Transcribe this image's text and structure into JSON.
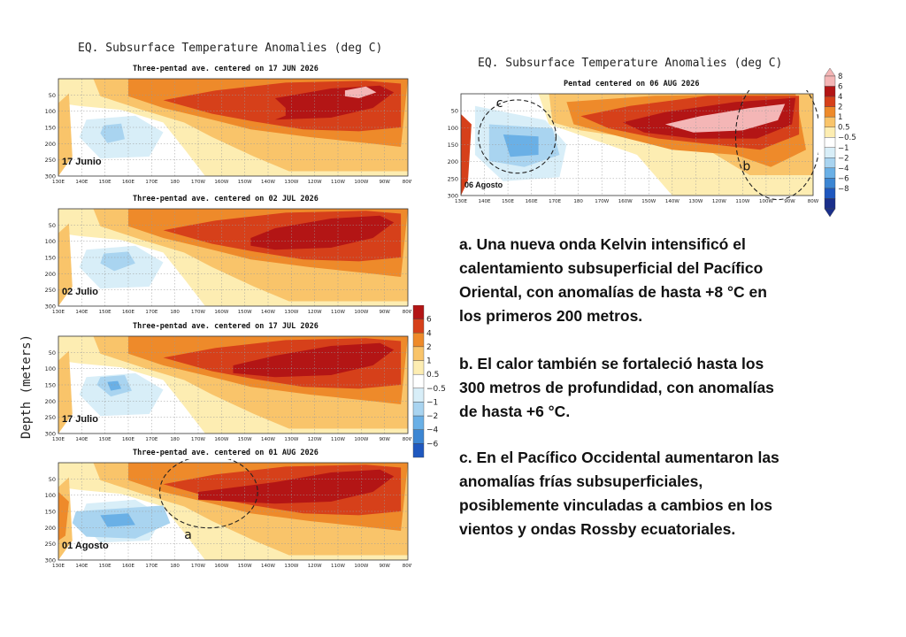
{
  "main_figure": {
    "title": "EQ. Subsurface Temperature Anomalies (deg C)",
    "y_axis_label": "Depth (meters)",
    "panels": [
      {
        "subtitle": "Three-pentad ave. centered on 17 JUN 2026",
        "date_label": "17 Junio"
      },
      {
        "subtitle": "Three-pentad ave. centered on 02 JUL 2026",
        "date_label": "02 Julio"
      },
      {
        "subtitle": "Three-pentad ave. centered on 17 JUL 2026",
        "date_label": "17 Julio"
      },
      {
        "subtitle": "Three-pentad ave. centered on 01 AUG 2026",
        "date_label": "01 Agosto",
        "circle_label": "a"
      }
    ],
    "colorbar_labels": [
      "6",
      "4",
      "2",
      "1",
      "0.5",
      "−0.5",
      "−1",
      "−2",
      "−4",
      "−6"
    ]
  },
  "right_figure": {
    "title": "EQ. Subsurface Temperature Anomalies (deg C)",
    "subtitle": "Pentad centered on 06 AUG 2026",
    "date_label": "06 Agosto",
    "circle_labels": {
      "c": "c",
      "b": "b"
    },
    "colorbar_labels": [
      "8",
      "6",
      "4",
      "2",
      "1",
      "0.5",
      "−0.5",
      "−1",
      "−2",
      "−4",
      "−6",
      "−8"
    ]
  },
  "annotations": {
    "a_lines": [
      "a. Una nueva onda Kelvin intensificó el",
      "calentamiento subsuperficial del Pacífico",
      "Oriental, con anomalías de hasta +8 °C en",
      "los primeros 200 metros."
    ],
    "b_lines": [
      "b. El calor también se fortaleció hasta los",
      "300 metros de profundidad, con anomalías",
      "de hasta +6 °C."
    ],
    "c_lines": [
      "c. En el Pacífico Occidental aumentaron las",
      "anomalías frías subsuperficiales,",
      "posiblemente vinculadas a cambios en los",
      "vientos y ondas Rossby ecuatoriales."
    ]
  },
  "chart_data": {
    "type": "heatmap",
    "x_ticks": [
      "130E",
      "140E",
      "150E",
      "160E",
      "170E",
      "180",
      "170W",
      "160W",
      "150W",
      "140W",
      "130W",
      "120W",
      "110W",
      "100W",
      "90W",
      "80W"
    ],
    "y_ticks": [
      50,
      100,
      150,
      200,
      250,
      300
    ],
    "xlim": [
      "130E",
      "80W"
    ],
    "ylim": [
      300,
      0
    ],
    "color_levels": [
      -8,
      -6,
      -4,
      -2,
      -1,
      -0.5,
      0.5,
      1,
      2,
      4,
      6,
      8
    ],
    "colors": {
      "pos_8": "#f4b6b6",
      "pos_6": "#b31515",
      "pos_4": "#d6401a",
      "pos_2": "#ee8a2a",
      "pos_1": "#f9c46a",
      "pos_05": "#fdedb2",
      "neutral": "#ffffff",
      "neg_05": "#d8eef8",
      "neg_1": "#a9d4f0",
      "neg_2": "#6ab0e6",
      "neg_4": "#3c86d3",
      "neg_6": "#1f58bf",
      "neg_8": "#1a2f8a"
    }
  }
}
